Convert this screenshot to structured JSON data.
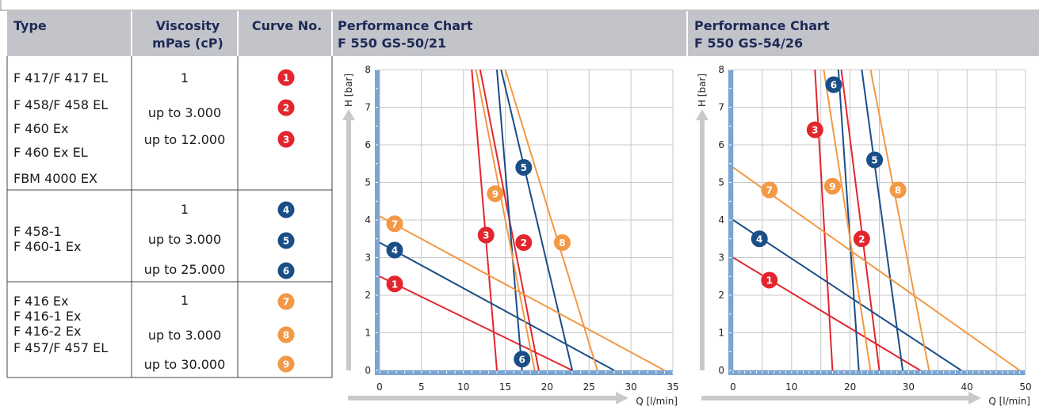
{
  "colors": {
    "header_bg": "#c2c4ca",
    "grid": "#c8c8c8",
    "axis_blue": "#7aa5d2",
    "arrow_gray": "#c9c9c9",
    "red": "#e3262e",
    "blue": "#1a4e86",
    "orange": "#f39845"
  },
  "table": {
    "headers": {
      "type": "Type",
      "visc_1": "Viscosity",
      "visc_2": "mPas (cP)",
      "curve": "Curve No."
    },
    "groups": [
      {
        "types": [
          "F 417/F 417 EL",
          "F 458/F 458 EL",
          "F 460 Ex",
          "F 460 Ex EL",
          "FBM 4000 EX"
        ],
        "viscosities": [
          "1",
          "up to 3.000",
          "up to 12.000"
        ],
        "curves": [
          {
            "num": "1",
            "color": "red"
          },
          {
            "num": "2",
            "color": "red"
          },
          {
            "num": "3",
            "color": "red"
          }
        ]
      },
      {
        "types": [
          "F 458-1",
          "F 460-1 Ex"
        ],
        "viscosities": [
          "1",
          "up to 3.000",
          "up to 25.000"
        ],
        "curves": [
          {
            "num": "4",
            "color": "blue"
          },
          {
            "num": "5",
            "color": "blue"
          },
          {
            "num": "6",
            "color": "blue"
          }
        ]
      },
      {
        "types": [
          "F 416 Ex",
          "F 416-1 Ex",
          "F 416-2 Ex",
          "F 457/F 457 EL"
        ],
        "viscosities": [
          "1",
          "up to 3.000",
          "up to 30.000"
        ],
        "curves": [
          {
            "num": "7",
            "color": "orange"
          },
          {
            "num": "8",
            "color": "orange"
          },
          {
            "num": "9",
            "color": "orange"
          }
        ]
      }
    ]
  },
  "chart_data": [
    {
      "type": "line",
      "title": "Performance Chart",
      "subtitle": "F 550 GS-50/21",
      "xlabel": "Q [l/min]",
      "ylabel": "H [bar]",
      "xlim": [
        0,
        35
      ],
      "ylim": [
        0,
        8
      ],
      "xticks": [
        0,
        5,
        10,
        15,
        20,
        25,
        30,
        35
      ],
      "yticks": [
        0,
        1,
        2,
        3,
        4,
        5,
        6,
        7,
        8
      ],
      "series": [
        {
          "name": "1",
          "color": "red",
          "x": [
            0,
            23
          ],
          "y": [
            2.5,
            0
          ],
          "label_at": [
            1.8,
            2.3
          ]
        },
        {
          "name": "2",
          "color": "red",
          "x": [
            12,
            19
          ],
          "y": [
            8,
            0
          ],
          "label_at": [
            17.2,
            3.4
          ]
        },
        {
          "name": "3",
          "color": "red",
          "x": [
            11,
            14
          ],
          "y": [
            8,
            0
          ],
          "label_at": [
            12.7,
            3.6
          ]
        },
        {
          "name": "4",
          "color": "blue",
          "x": [
            0,
            28
          ],
          "y": [
            3.4,
            0
          ],
          "label_at": [
            1.8,
            3.2
          ]
        },
        {
          "name": "5",
          "color": "blue",
          "x": [
            14.5,
            23
          ],
          "y": [
            8,
            0
          ],
          "label_at": [
            17.2,
            5.4
          ]
        },
        {
          "name": "6",
          "color": "blue",
          "x": [
            14,
            17
          ],
          "y": [
            8,
            0
          ],
          "label_at": [
            17,
            0.3
          ]
        },
        {
          "name": "7",
          "color": "orange",
          "x": [
            0,
            34
          ],
          "y": [
            4.1,
            0
          ],
          "label_at": [
            1.8,
            3.9
          ]
        },
        {
          "name": "8",
          "color": "orange",
          "x": [
            15,
            26
          ],
          "y": [
            8,
            0
          ],
          "label_at": [
            21.8,
            3.4
          ]
        },
        {
          "name": "9",
          "color": "orange",
          "x": [
            11.5,
            18.5
          ],
          "y": [
            8,
            0
          ],
          "label_at": [
            13.8,
            4.7
          ]
        }
      ]
    },
    {
      "type": "line",
      "title": "Performance Chart",
      "subtitle": "F 550 GS-54/26",
      "xlabel": "Q [l/min]",
      "ylabel": "H [bar]",
      "xlim": [
        0,
        50
      ],
      "ylim": [
        0,
        8
      ],
      "xticks": [
        0,
        10,
        20,
        30,
        40,
        50
      ],
      "yticks": [
        0,
        1,
        2,
        3,
        4,
        5,
        6,
        7,
        8
      ],
      "series": [
        {
          "name": "1",
          "color": "red",
          "x": [
            0,
            32
          ],
          "y": [
            3,
            0
          ],
          "label_at": [
            6.2,
            2.4
          ]
        },
        {
          "name": "2",
          "color": "red",
          "x": [
            18.5,
            25
          ],
          "y": [
            8,
            0
          ],
          "label_at": [
            22,
            3.5
          ]
        },
        {
          "name": "3",
          "color": "red",
          "x": [
            14,
            17
          ],
          "y": [
            8,
            0
          ],
          "label_at": [
            14,
            6.4
          ]
        },
        {
          "name": "4",
          "color": "blue",
          "x": [
            0,
            39
          ],
          "y": [
            4,
            0
          ],
          "label_at": [
            4.5,
            3.5
          ]
        },
        {
          "name": "5",
          "color": "blue",
          "x": [
            22,
            29
          ],
          "y": [
            8,
            0
          ],
          "label_at": [
            24.2,
            5.6
          ]
        },
        {
          "name": "6",
          "color": "blue",
          "x": [
            18,
            21.5
          ],
          "y": [
            8,
            0
          ],
          "label_at": [
            17.2,
            7.6
          ]
        },
        {
          "name": "7",
          "color": "orange",
          "x": [
            0,
            49
          ],
          "y": [
            5.4,
            0
          ],
          "label_at": [
            6.2,
            4.8
          ]
        },
        {
          "name": "8",
          "color": "orange",
          "x": [
            23.5,
            33.5
          ],
          "y": [
            8,
            0
          ],
          "label_at": [
            28.2,
            4.8
          ]
        },
        {
          "name": "9",
          "color": "orange",
          "x": [
            15.5,
            23.5
          ],
          "y": [
            8,
            0
          ],
          "label_at": [
            17,
            4.9
          ]
        }
      ]
    }
  ]
}
